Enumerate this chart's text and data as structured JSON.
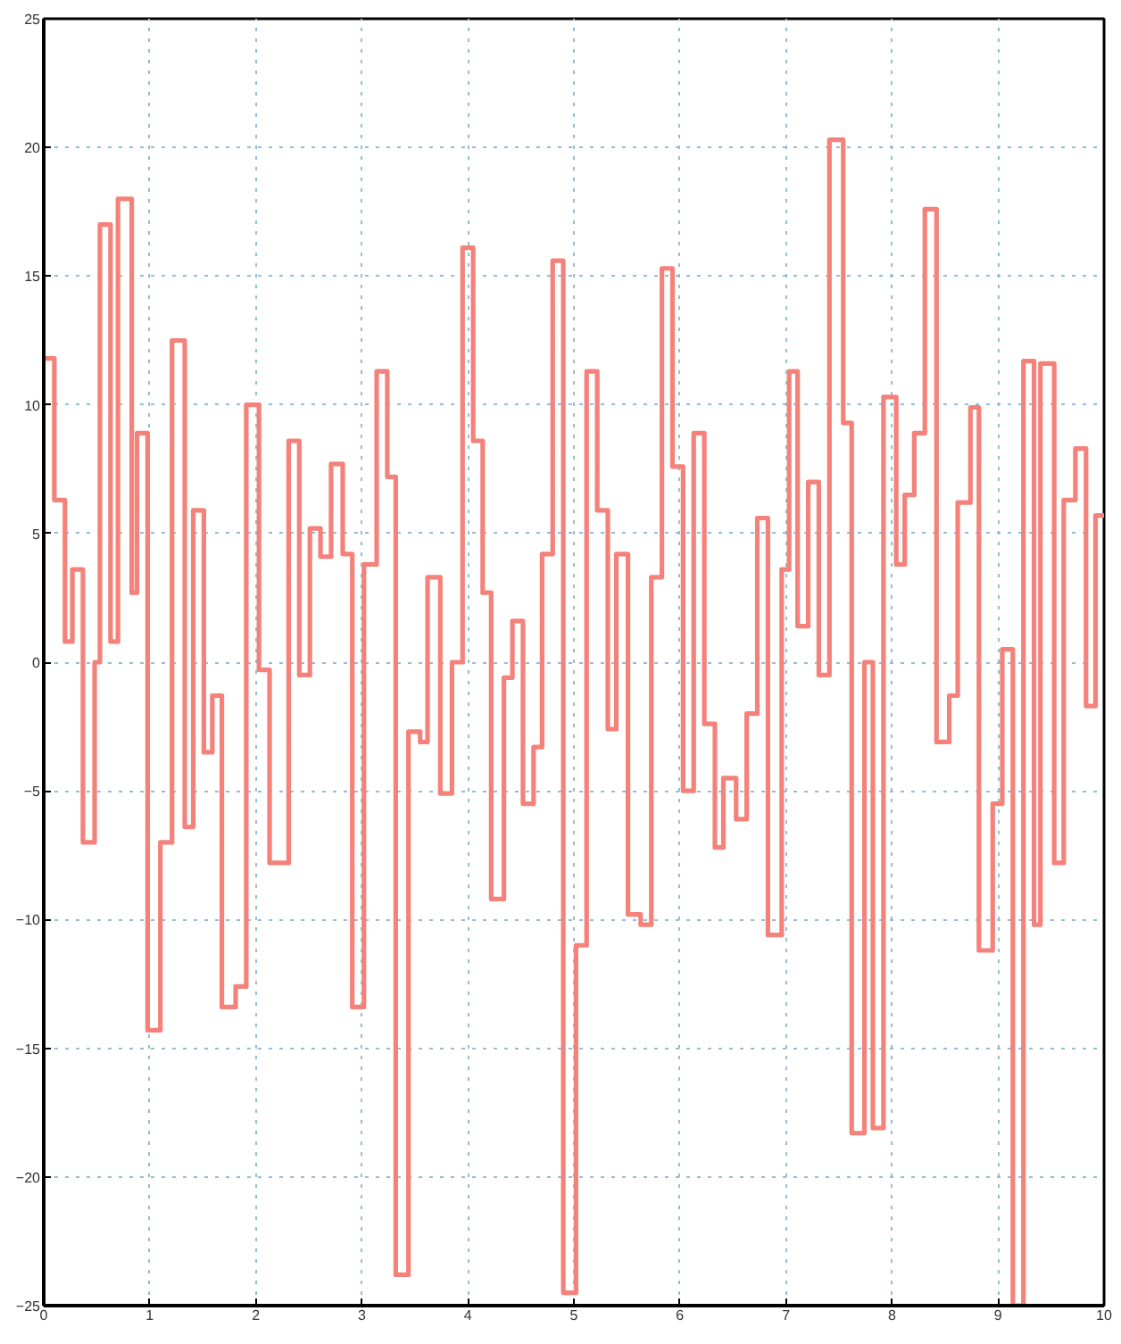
{
  "chart_data": {
    "type": "step",
    "xlim": [
      0,
      10
    ],
    "ylim": [
      -25,
      25
    ],
    "xticks": [
      0,
      1,
      2,
      3,
      4,
      5,
      6,
      7,
      8,
      9,
      10
    ],
    "yticks": [
      -25,
      -20,
      -15,
      -10,
      -5,
      0,
      5,
      10,
      15,
      20,
      25
    ],
    "grid": true,
    "series": [
      {
        "color": "#f4817a",
        "x": [
          0,
          0.1,
          0.2,
          0.27,
          0.37,
          0.48,
          0.53,
          0.63,
          0.7,
          0.83,
          0.88,
          0.98,
          1.1,
          1.21,
          1.33,
          1.41,
          1.51,
          1.59,
          1.68,
          1.81,
          1.91,
          2.03,
          2.13,
          2.31,
          2.41,
          2.51,
          2.61,
          2.71,
          2.82,
          2.91,
          3.02,
          3.14,
          3.24,
          3.32,
          3.44,
          3.55,
          3.62,
          3.74,
          3.85,
          3.95,
          4.05,
          4.14,
          4.22,
          4.34,
          4.42,
          4.52,
          4.62,
          4.7,
          4.8,
          4.9,
          5.02,
          5.12,
          5.22,
          5.32,
          5.4,
          5.51,
          5.63,
          5.73,
          5.83,
          5.93,
          6.03,
          6.13,
          6.23,
          6.33,
          6.41,
          6.53,
          6.63,
          6.73,
          6.83,
          6.96,
          7.03,
          7.11,
          7.21,
          7.31,
          7.41,
          7.54,
          7.62,
          7.74,
          7.82,
          7.92,
          8.04,
          8.12,
          8.21,
          8.31,
          8.42,
          8.54,
          8.62,
          8.74,
          8.82,
          8.95,
          9.04,
          9.14,
          9.24,
          9.34,
          9.4,
          9.53,
          9.62,
          9.73,
          9.83,
          9.92,
          10.0
        ],
        "values": [
          11.8,
          6.3,
          0.8,
          3.6,
          -7,
          0,
          17,
          0.8,
          18,
          2.7,
          8.9,
          -14.3,
          -7,
          12.5,
          -6.4,
          5.9,
          -3.5,
          -1.3,
          -13.4,
          -12.6,
          10,
          -0.3,
          -7.8,
          8.6,
          -0.5,
          5.2,
          4.1,
          7.7,
          4.2,
          -13.4,
          3.8,
          11.3,
          7.2,
          -23.8,
          -2.7,
          -3.1,
          3.3,
          -5.1,
          0,
          16.1,
          8.6,
          2.7,
          -9.2,
          -0.6,
          1.6,
          -5.5,
          -3.3,
          4.2,
          15.6,
          -24.5,
          -11,
          11.3,
          5.9,
          -2.6,
          4.2,
          -9.8,
          -10.2,
          3.3,
          15.3,
          7.6,
          -5,
          8.9,
          -2.4,
          -7.2,
          -4.5,
          -6.1,
          -2,
          5.6,
          -10.6,
          3.6,
          11.3,
          1.4,
          7,
          -0.5,
          20.3,
          9.3,
          -18.3,
          0,
          -18.1,
          10.3,
          3.8,
          6.5,
          8.9,
          17.6,
          -3.1,
          -1.3,
          6.2,
          9.9,
          -11.2,
          -5.5,
          0.5,
          -25,
          11.7,
          -10.2,
          11.6,
          -7.8,
          6.3,
          8.3,
          -1.7,
          5.7,
          5.7
        ]
      }
    ]
  }
}
